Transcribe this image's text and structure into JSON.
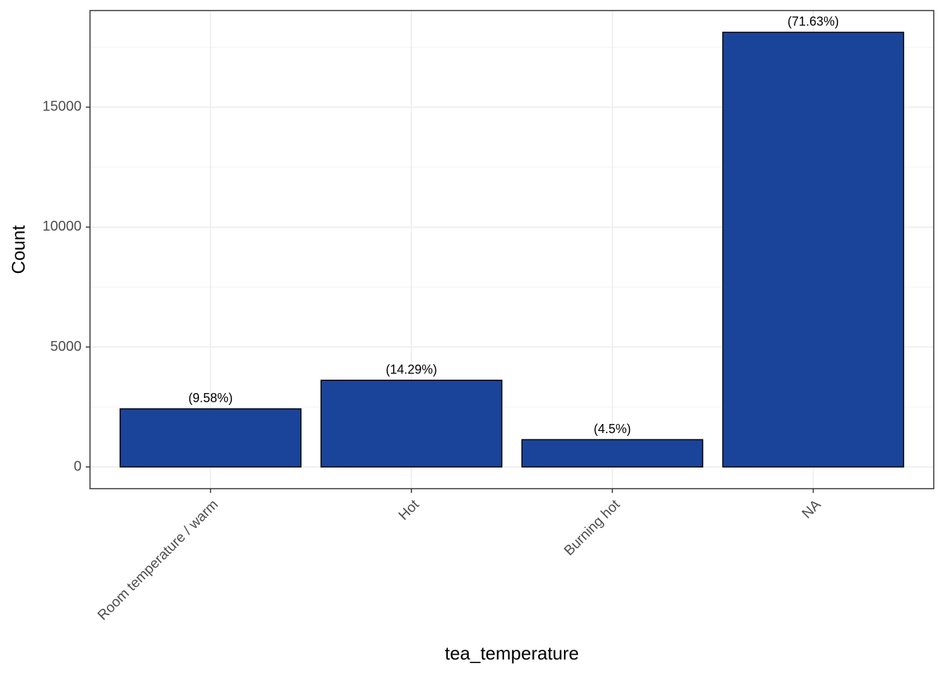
{
  "chart_data": {
    "type": "bar",
    "x_label": "tea_temperature",
    "y_label": "Count",
    "categories": [
      "Room temperature / warm",
      "Hot",
      "Burning hot",
      "NA"
    ],
    "values": [
      2424,
      3615,
      1138,
      18122
    ],
    "annotations": [
      "(9.58%)",
      "(14.29%)",
      "(4.5%)",
      "(71.63%)"
    ],
    "color": "#1a4499",
    "ylim": [
      -906,
      19028
    ],
    "yticks": [
      0,
      5000,
      10000,
      15000
    ],
    "minor_yticks": [
      2500,
      7500,
      12500,
      17500
    ],
    "grid": true
  }
}
